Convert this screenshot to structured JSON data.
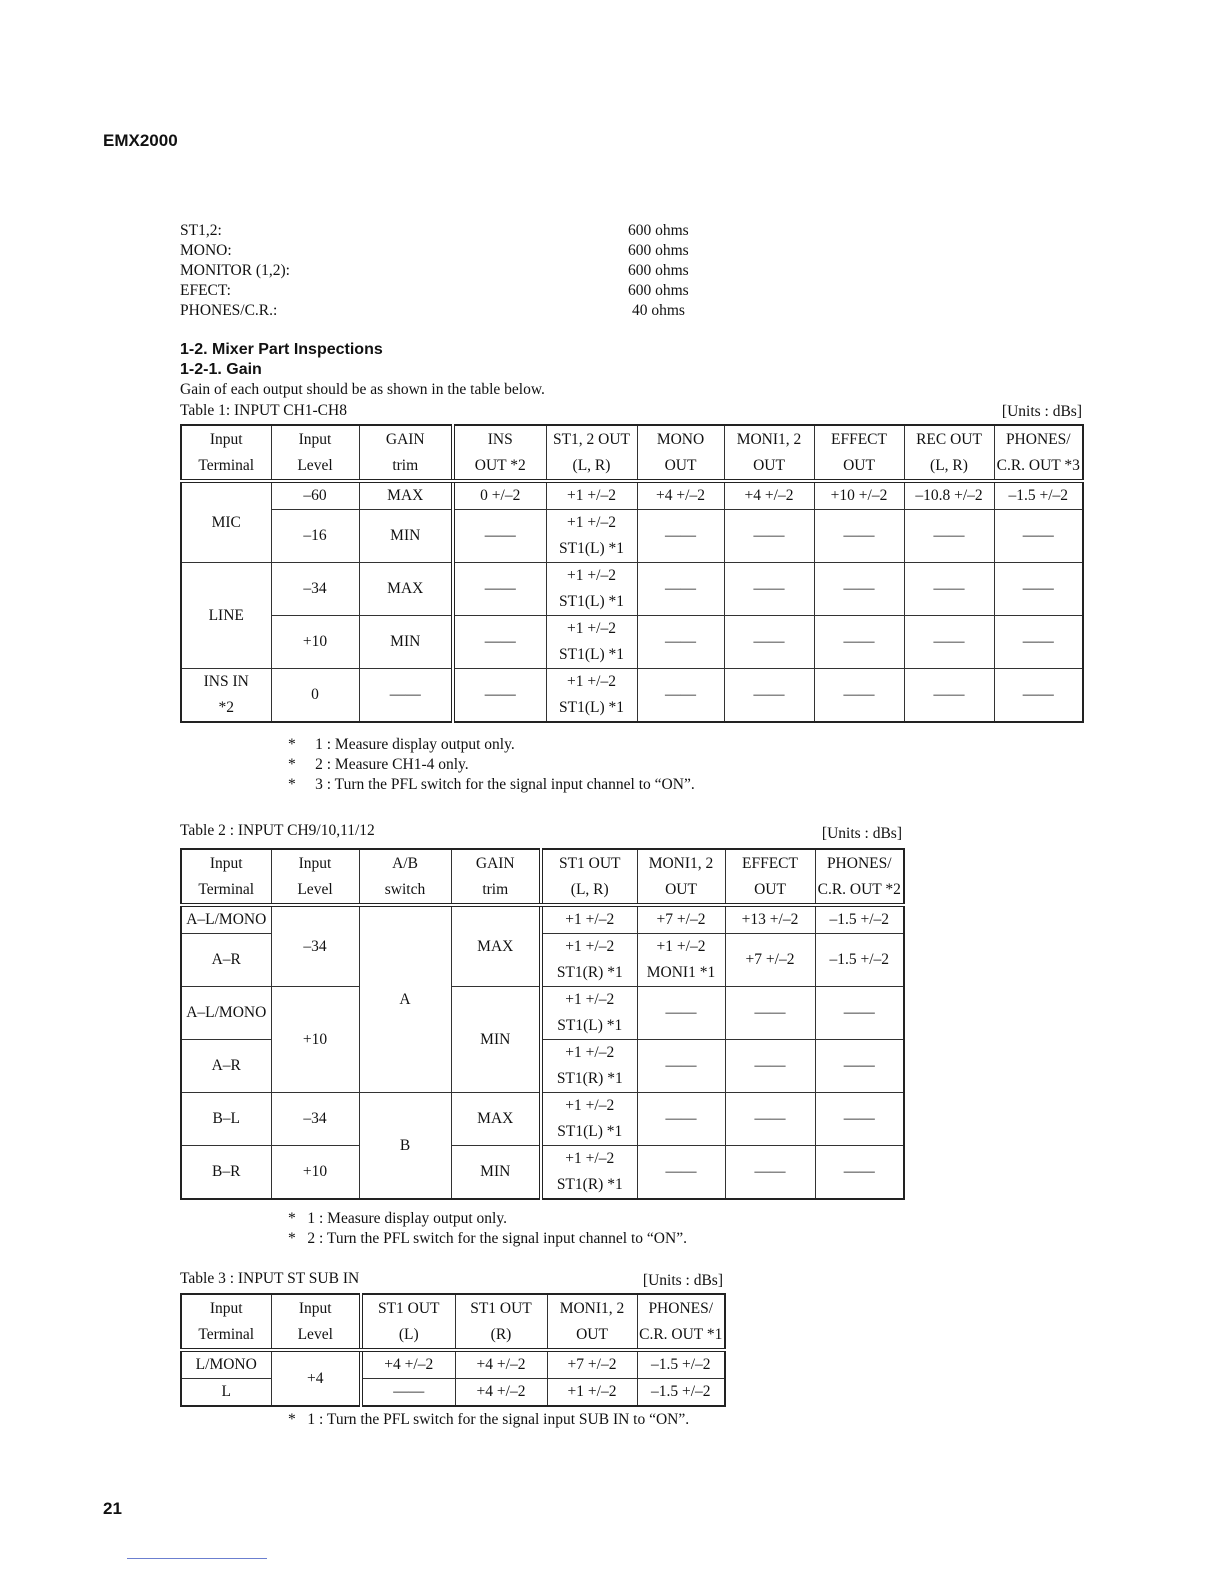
{
  "header": {
    "model": "EMX2000"
  },
  "impedances": [
    {
      "label": "ST1,2:",
      "value": "600 ohms"
    },
    {
      "label": "MONO:",
      "value": "600 ohms"
    },
    {
      "label": "MONITOR (1,2):",
      "value": "600 ohms"
    },
    {
      "label": "EFECT:",
      "value": "600 ohms"
    },
    {
      "label": "PHONES/C.R.:",
      "value": "40 ohms"
    }
  ],
  "section": {
    "heading": "1-2.  Mixer Part Inspections",
    "subheading": "1-2-1. Gain",
    "intro": "Gain of each output should be as shown in the table below."
  },
  "table1": {
    "caption": "Table 1: INPUT CH1-CH8",
    "units": "[Units : dBs]",
    "headers": [
      "Input\nTerminal",
      "Input\nLevel",
      "GAIN\ntrim",
      "INS\nOUT *2",
      "ST1, 2 OUT\n(L, R)",
      "MONO\nOUT",
      "MONI1, 2\nOUT",
      "EFFECT\nOUT",
      "REC OUT\n(L, R)",
      "PHONES/\nC.R. OUT *3"
    ],
    "rows": [
      [
        {
          "t": "MIC",
          "rs": 2
        },
        "–60",
        "MAX",
        "0 +/–2",
        "+1 +/–2",
        "+4 +/–2",
        "+4 +/–2",
        "+10 +/–2",
        "–10.8 +/–2",
        "–1.5 +/–2"
      ],
      [
        "–16",
        "MIN",
        "——",
        "+1 +/–2\nST1(L) *1",
        "——",
        "——",
        "——",
        "——",
        "——"
      ],
      [
        {
          "t": "LINE",
          "rs": 2
        },
        "–34",
        "MAX",
        "——",
        "+1 +/–2\nST1(L) *1",
        "——",
        "——",
        "——",
        "——",
        "——"
      ],
      [
        "+10",
        "MIN",
        "——",
        "+1 +/–2\nST1(L) *1",
        "——",
        "——",
        "——",
        "——",
        "——"
      ],
      [
        "INS IN\n*2",
        "0",
        "——",
        "——",
        "+1 +/–2\nST1(L) *1",
        "——",
        "——",
        "——",
        "——",
        "——"
      ]
    ],
    "footnotes": [
      "*     1 : Measure display output only.",
      "*     2 : Measure CH1-4 only.",
      "*     3 : Turn the PFL switch for the signal input channel to “ON”."
    ]
  },
  "table2": {
    "caption": "Table 2 : INPUT CH9/10,11/12",
    "units": "[Units : dBs]",
    "headers": [
      "Input\nTerminal",
      "Input\nLevel",
      "A/B\nswitch",
      "GAIN\ntrim",
      "ST1 OUT\n(L, R)",
      "MONI1, 2\nOUT",
      "EFFECT\nOUT",
      "PHONES/\nC.R. OUT *2"
    ],
    "rows": [
      [
        "A–L/MONO",
        {
          "t": "–34",
          "rs": 2
        },
        {
          "t": "A",
          "rs": 4
        },
        {
          "t": "MAX",
          "rs": 2
        },
        "+1 +/–2",
        "+7 +/–2",
        "+13 +/–2",
        "–1.5 +/–2"
      ],
      [
        "A–R",
        "+1 +/–2\nST1(R) *1",
        "+1 +/–2\nMONI1 *1",
        "+7 +/–2",
        "–1.5 +/–2"
      ],
      [
        "A–L/MONO",
        {
          "t": "+10",
          "rs": 2
        },
        {
          "t": "MIN",
          "rs": 2
        },
        "+1 +/–2\nST1(L) *1",
        "——",
        "——",
        "——"
      ],
      [
        "A–R",
        "+1 +/–2\nST1(R) *1",
        "——",
        "——",
        "——"
      ],
      [
        "B–L",
        "–34",
        {
          "t": "B",
          "rs": 2
        },
        "MAX",
        "+1 +/–2\nST1(L) *1",
        "——",
        "——",
        "——"
      ],
      [
        "B–R",
        "+10",
        "MIN",
        "+1 +/–2\nST1(R) *1",
        "——",
        "——",
        "——"
      ]
    ],
    "footnotes": [
      "*   1 : Measure display output only.",
      "*   2 : Turn the PFL switch for the signal input channel to “ON”."
    ]
  },
  "table3": {
    "caption": "Table 3 : INPUT ST SUB IN",
    "units": "[Units : dBs]",
    "headers": [
      "Input\nTerminal",
      "Input\nLevel",
      "ST1 OUT\n(L)",
      "ST1 OUT\n(R)",
      "MONI1, 2\nOUT",
      "PHONES/\nC.R. OUT *1"
    ],
    "rows": [
      [
        "L/MONO",
        {
          "t": "+4",
          "rs": 2
        },
        "+4 +/–2",
        "+4 +/–2",
        "+7 +/–2",
        "–1.5 +/–2"
      ],
      [
        "L",
        "——",
        "+4 +/–2",
        "+1 +/–2",
        "–1.5 +/–2"
      ]
    ],
    "footnotes": [
      "*   1 : Turn the PFL switch for the signal input SUB IN to “ON”."
    ]
  },
  "footer": {
    "page_number": "21"
  }
}
